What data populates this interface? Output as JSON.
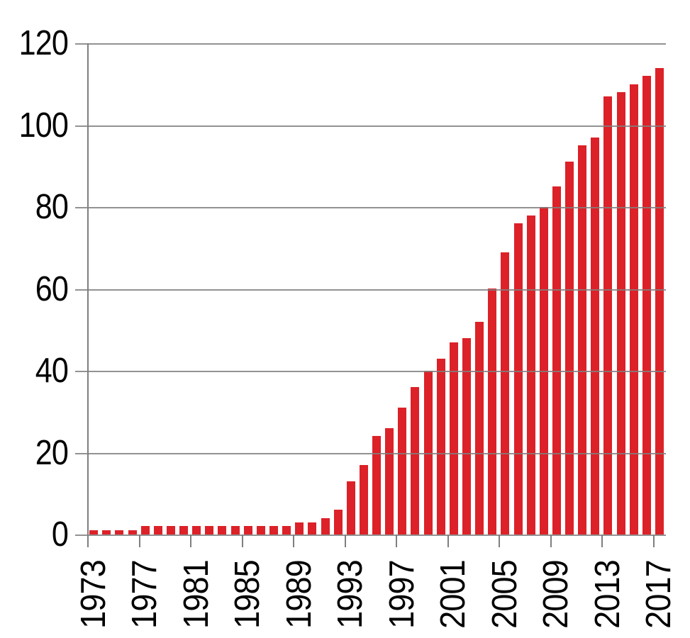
{
  "chart_data": {
    "type": "bar",
    "title": "",
    "xlabel": "",
    "ylabel": "",
    "categories": [
      "1973",
      "1974",
      "1975",
      "1976",
      "1977",
      "1978",
      "1979",
      "1980",
      "1981",
      "1982",
      "1983",
      "1984",
      "1985",
      "1986",
      "1987",
      "1988",
      "1989",
      "1990",
      "1991",
      "1992",
      "1993",
      "1994",
      "1995",
      "1996",
      "1997",
      "1998",
      "1999",
      "2000",
      "2001",
      "2002",
      "2003",
      "2004",
      "2005",
      "2006",
      "2007",
      "2008",
      "2009",
      "2010",
      "2011",
      "2012",
      "2013",
      "2014",
      "2015",
      "2016",
      "2017"
    ],
    "values": [
      1,
      1,
      1,
      1,
      2,
      2,
      2,
      2,
      2,
      2,
      2,
      2,
      2,
      2,
      2,
      2,
      3,
      3,
      4,
      6,
      13,
      17,
      24,
      26,
      31,
      36,
      40,
      43,
      47,
      48,
      52,
      60,
      69,
      76,
      78,
      80,
      85,
      91,
      95,
      97,
      107,
      108,
      110,
      112,
      114
    ],
    "x_tick_labels": [
      "1973",
      "1977",
      "1981",
      "1985",
      "1989",
      "1993",
      "1997",
      "2001",
      "2005",
      "2009",
      "2013",
      "2017"
    ],
    "x_label_interval": 4,
    "y_ticks": [
      0,
      20,
      40,
      60,
      80,
      100,
      120
    ],
    "y_tick_labels": [
      "0",
      "20",
      "40",
      "60",
      "80",
      "100",
      "120"
    ],
    "ylim": [
      0,
      120
    ],
    "grid": true,
    "gridlines_over_bars": true,
    "legend": false,
    "bar_color": "#DC2128",
    "grid_color": "#7F7F7F",
    "axis_color": "#7F7F7F",
    "text_color": "#000000",
    "background": "#FFFFFF"
  }
}
